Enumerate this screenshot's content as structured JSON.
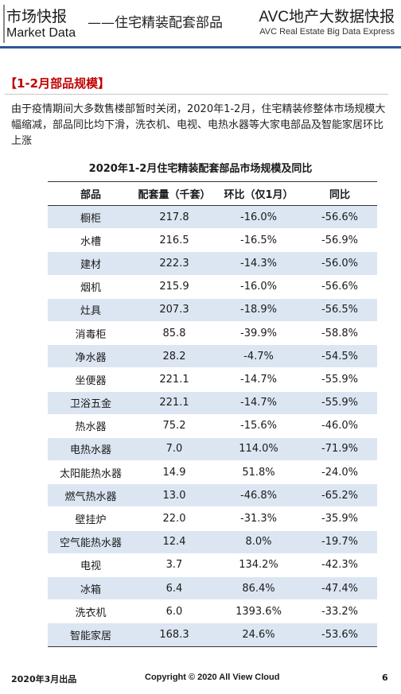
{
  "header": {
    "left_title": "市场快报",
    "left_subtitle": "Market Data",
    "middle_title": "——住宅精装配套部品",
    "right_title": "AVC地产大数据快报",
    "right_subtitle": "AVC  Real Estate Big Data Express"
  },
  "section": {
    "title": "【1-2月部品规模】",
    "intro": "由于疫情期间大多数售楼部暂时关闭，2020年1-2月，住宅精装修整体市场规模大幅缩减，部品同比均下滑，洗衣机、电视、电热水器等大家电部品及智能家居环比上涨"
  },
  "table": {
    "title": "2020年1-2月住宅精装配套部品市场规模及同比",
    "headers": [
      "部品",
      "配套量（千套）",
      "环比（仅1月）",
      "同比"
    ],
    "rows": [
      [
        "橱柜",
        "217.8",
        "-16.0%",
        "-56.6%"
      ],
      [
        "水槽",
        "216.5",
        "-16.5%",
        "-56.9%"
      ],
      [
        "建材",
        "222.3",
        "-14.3%",
        "-56.0%"
      ],
      [
        "烟机",
        "215.9",
        "-16.0%",
        "-56.6%"
      ],
      [
        "灶具",
        "207.3",
        "-18.9%",
        "-56.5%"
      ],
      [
        "消毒柜",
        "85.8",
        "-39.9%",
        "-58.8%"
      ],
      [
        "净水器",
        "28.2",
        "-4.7%",
        "-54.5%"
      ],
      [
        "坐便器",
        "221.1",
        "-14.7%",
        "-55.9%"
      ],
      [
        "卫浴五金",
        "221.1",
        "-14.7%",
        "-55.9%"
      ],
      [
        "热水器",
        "75.2",
        "-15.6%",
        "-46.0%"
      ],
      [
        "电热水器",
        "7.0",
        "114.0%",
        "-71.9%"
      ],
      [
        "太阳能热水器",
        "14.9",
        "51.8%",
        "-24.0%"
      ],
      [
        "燃气热水器",
        "13.0",
        "-46.8%",
        "-65.2%"
      ],
      [
        "壁挂炉",
        "22.0",
        "-31.3%",
        "-35.9%"
      ],
      [
        "空气能热水器",
        "12.4",
        "8.0%",
        "-19.7%"
      ],
      [
        "电视",
        "3.7",
        "134.2%",
        "-42.3%"
      ],
      [
        "冰箱",
        "6.4",
        "86.4%",
        "-47.4%"
      ],
      [
        "洗衣机",
        "6.0",
        "1393.6%",
        "-33.2%"
      ],
      [
        "智能家居",
        "168.3",
        "24.6%",
        "-53.6%"
      ]
    ]
  },
  "footer": {
    "date": "2020年3月出品",
    "copyright": "Copyright © 2020  All View Cloud",
    "page": "6"
  },
  "colors": {
    "accent_red": "#c00000",
    "header_rule": "#2f5597",
    "row_stripe": "#dce6f2"
  }
}
